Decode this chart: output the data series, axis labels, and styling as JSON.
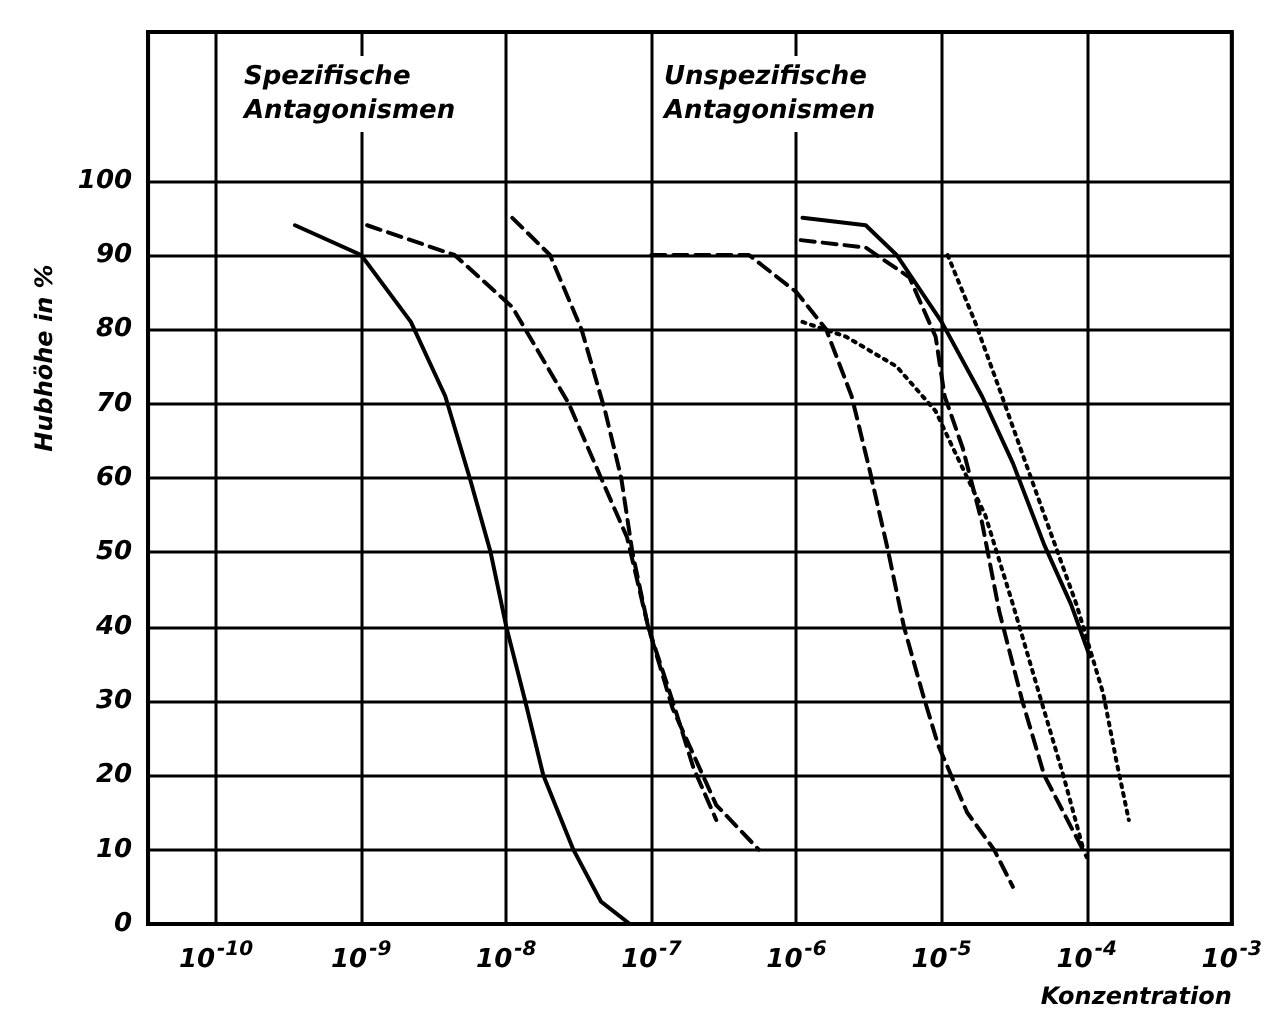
{
  "chart_data": {
    "type": "line",
    "xlabel": "Konzentration",
    "ylabel": "Hubhöhe in %",
    "log": "x",
    "grid": true,
    "marker": "none",
    "annotations": [
      "Spezifische Antagonismen",
      "Unspezifische Antagonismen"
    ],
    "xlim": [
      3.4e-11,
      0.001
    ],
    "xticks": [
      {
        "value": 1e-10,
        "label": "10$^{-10}$"
      },
      {
        "value": 1e-09,
        "label": "10$^{-9}$"
      },
      {
        "value": 1e-08,
        "label": "10$^{-8}$"
      },
      {
        "value": 1e-07,
        "label": "10$^{-7}$"
      },
      {
        "value": 1e-06,
        "label": "10$^{-6}$"
      },
      {
        "value": 1e-05,
        "label": "10$^{-5}$"
      },
      {
        "value": 0.0001,
        "label": "10$^{-4}$"
      },
      {
        "value": 0.001,
        "label": "10$^{-3}$"
      }
    ],
    "ylim": [
      0,
      120
    ],
    "yticks": [
      0,
      10,
      20,
      30,
      40,
      50,
      60,
      70,
      80,
      90,
      100
    ],
    "series": [
      {
        "color": "#000000",
        "line_style": "solid",
        "x": [
          3.5e-10,
          1e-09,
          2.2e-09,
          3.8e-09,
          5.6e-09,
          7.8e-09,
          1e-08,
          1.35e-08,
          1.8e-08,
          2.9e-08,
          4.5e-08,
          7.1e-08
        ],
        "values": [
          94,
          90,
          81,
          71,
          60,
          50,
          40,
          30,
          20,
          10,
          3,
          0
        ]
      },
      {
        "color": "#000000",
        "line_style": "dashed",
        "x": [
          1.1e-09,
          4.4e-09,
          1.1e-08,
          2.7e-08,
          4.5e-08,
          6.8e-08,
          9.5e-08,
          1.4e-07,
          2.8e-07,
          5.5e-07
        ],
        "values": [
          94,
          90,
          83,
          70,
          60,
          52,
          40,
          29,
          16,
          10
        ]
      },
      {
        "color": "#000000",
        "line_style": "dashed",
        "x": [
          1.1e-08,
          2e-08,
          3.3e-08,
          4.8e-08,
          6.2e-08,
          7.4e-08,
          9.5e-08,
          1.4e-07,
          1.95e-07,
          2.8e-07
        ],
        "values": [
          95,
          90,
          80,
          69,
          60,
          50,
          40,
          30,
          21,
          14
        ]
      },
      {
        "color": "#000000",
        "line_style": "dashed",
        "x": [
          1e-07,
          4.7e-07,
          1e-06,
          1.6e-06,
          2.4e-06,
          3.2e-06,
          4.3e-06,
          5.5e-06,
          7.4e-06,
          9.5e-06,
          1.5e-05,
          2.3e-05,
          3.1e-05
        ],
        "values": [
          90,
          90,
          85,
          80,
          71,
          61,
          50,
          40,
          31,
          24,
          15,
          10,
          5
        ]
      },
      {
        "color": "#000000",
        "line_style": "solid",
        "x": [
          1.1e-06,
          3e-06,
          4.9e-06,
          1e-05,
          1.9e-05,
          3.1e-05,
          5.1e-05,
          7.8e-05,
          0.000105
        ],
        "values": [
          95,
          94,
          90,
          81,
          71,
          62,
          51,
          43,
          36
        ]
      },
      {
        "color": "#000000",
        "line_style": "dashed",
        "x": [
          1.07e-06,
          3e-06,
          6e-06,
          9.1e-06,
          1.05e-05,
          1.4e-05,
          1.9e-05,
          2.5e-05,
          3.6e-05,
          5.1e-05,
          0.0001
        ],
        "values": [
          92,
          91,
          87,
          79,
          71,
          64,
          54,
          42,
          30,
          20,
          9
        ]
      },
      {
        "color": "#000000",
        "line_style": "dotted",
        "x": [
          1.1e-06,
          2.2e-06,
          4.9e-06,
          9.1e-06,
          1.2e-05,
          2e-05,
          3.1e-05,
          4.7e-05,
          6.9e-05,
          9.5e-05
        ],
        "values": [
          81,
          79,
          75,
          69,
          64,
          55,
          43,
          31,
          20,
          10
        ]
      },
      {
        "color": "#000000",
        "line_style": "dotted",
        "x": [
          1.1e-05,
          1.7e-05,
          2.5e-05,
          3.8e-05,
          5.8e-05,
          8.5e-05,
          0.00013,
          0.00016,
          0.000195
        ],
        "values": [
          90,
          81,
          72,
          62,
          52,
          43,
          31,
          22,
          14
        ]
      }
    ]
  }
}
